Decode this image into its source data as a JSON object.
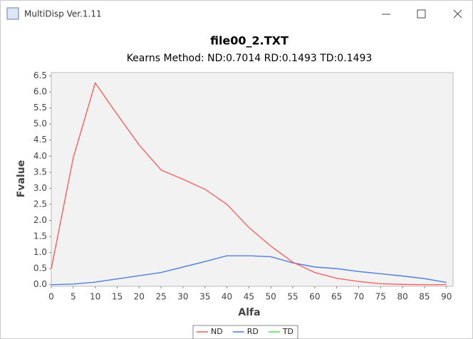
{
  "window": {
    "title": "MultiDisp Ver.1.11"
  },
  "chart_data": {
    "type": "line",
    "title": "file00_2.TXT",
    "subtitle": "Kearns Method: ND:0.7014 RD:0.1493 TD:0.1493",
    "x_label": "Alfa",
    "y_label": "Fvalue",
    "x": [
      0,
      5,
      10,
      15,
      20,
      25,
      30,
      35,
      40,
      45,
      50,
      55,
      60,
      65,
      70,
      75,
      80,
      85,
      90
    ],
    "series": [
      {
        "name": "ND",
        "color": "#ff5555",
        "values": [
          0.5,
          3.95,
          6.28,
          5.3,
          4.35,
          3.57,
          3.28,
          2.97,
          2.5,
          1.78,
          1.2,
          0.7,
          0.38,
          0.2,
          0.1,
          0.03,
          0.01,
          0.0,
          0.0
        ]
      },
      {
        "name": "RD",
        "color": "#5577ee",
        "values": [
          0.0,
          0.02,
          0.08,
          0.18,
          0.28,
          0.38,
          0.55,
          0.72,
          0.9,
          0.9,
          0.87,
          0.68,
          0.55,
          0.5,
          0.41,
          0.34,
          0.27,
          0.19,
          0.07
        ]
      },
      {
        "name": "TD",
        "color": "#55dd55",
        "values": [
          0.0,
          0.02,
          0.08,
          0.18,
          0.28,
          0.38,
          0.55,
          0.72,
          0.9,
          0.9,
          0.87,
          0.68,
          0.55,
          0.5,
          0.41,
          0.34,
          0.27,
          0.19,
          0.07
        ]
      }
    ],
    "xlim": [
      0,
      91.5
    ],
    "ylim": [
      -0.05,
      6.6
    ],
    "xticks": [
      0,
      5,
      10,
      15,
      20,
      25,
      30,
      35,
      40,
      45,
      50,
      55,
      60,
      65,
      70,
      75,
      80,
      85,
      90
    ],
    "yticks": [
      {
        "value": 0,
        "label": "0.0"
      },
      0.5,
      {
        "value": 1,
        "label": "1.0"
      },
      1.5,
      {
        "value": 2,
        "label": "2.0"
      },
      2.5,
      {
        "value": 3,
        "label": "3.0"
      },
      3.5,
      {
        "value": 4,
        "label": "4.0"
      },
      4.5,
      {
        "value": 5,
        "label": "5.0"
      },
      5.5,
      {
        "value": 6,
        "label": "6.0"
      },
      6.5
    ],
    "grid": false,
    "legend": "bottom"
  }
}
